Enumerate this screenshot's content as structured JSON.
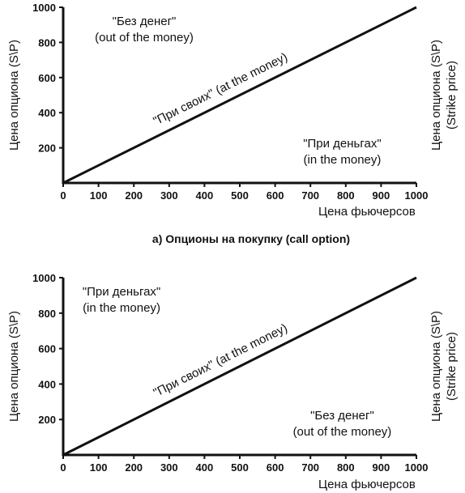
{
  "caption": "а) Опционы на покупку (call option)",
  "chart_data": [
    {
      "type": "line",
      "xlabel": "Цена фьючерсов",
      "ylabel": "Цена опциона (S\\P)",
      "ylabel_right": [
        "Цена опциона (S\\P)",
        "(Strike price)"
      ],
      "xlim": [
        0,
        1000
      ],
      "ylim": [
        0,
        1000
      ],
      "xticks": [
        "0",
        "100",
        "200",
        "300",
        "400",
        "500",
        "600",
        "700",
        "800",
        "900",
        "1000"
      ],
      "yticks": [
        "200",
        "400",
        "600",
        "800",
        "1000"
      ],
      "series": [
        {
          "x": [
            0,
            1000
          ],
          "y": [
            0,
            1000
          ]
        }
      ],
      "annotations": {
        "diagonal": "\"При своих\" (at the money)",
        "upper_left": [
          "\"Без денег\"",
          "(out of the money)"
        ],
        "lower_right": [
          "\"При деньгах\"",
          "(in the money)"
        ]
      }
    },
    {
      "type": "line",
      "xlabel": "Цена фьючерсов",
      "ylabel": "Цена опциона (S\\P)",
      "ylabel_right": [
        "Цена опциона (S\\P)",
        "(Strike price)"
      ],
      "xlim": [
        0,
        1000
      ],
      "ylim": [
        0,
        1000
      ],
      "xticks": [
        "0",
        "100",
        "200",
        "300",
        "400",
        "500",
        "600",
        "700",
        "800",
        "900",
        "1000"
      ],
      "yticks": [
        "200",
        "400",
        "600",
        "800",
        "1000"
      ],
      "series": [
        {
          "x": [
            0,
            1000
          ],
          "y": [
            0,
            1000
          ]
        }
      ],
      "annotations": {
        "diagonal": "\"При своих\" (at the money)",
        "upper_left": [
          "\"При деньгах\"",
          "(in the money)"
        ],
        "lower_right": [
          "\"Без денег\"",
          "(out of the money)"
        ]
      }
    }
  ]
}
